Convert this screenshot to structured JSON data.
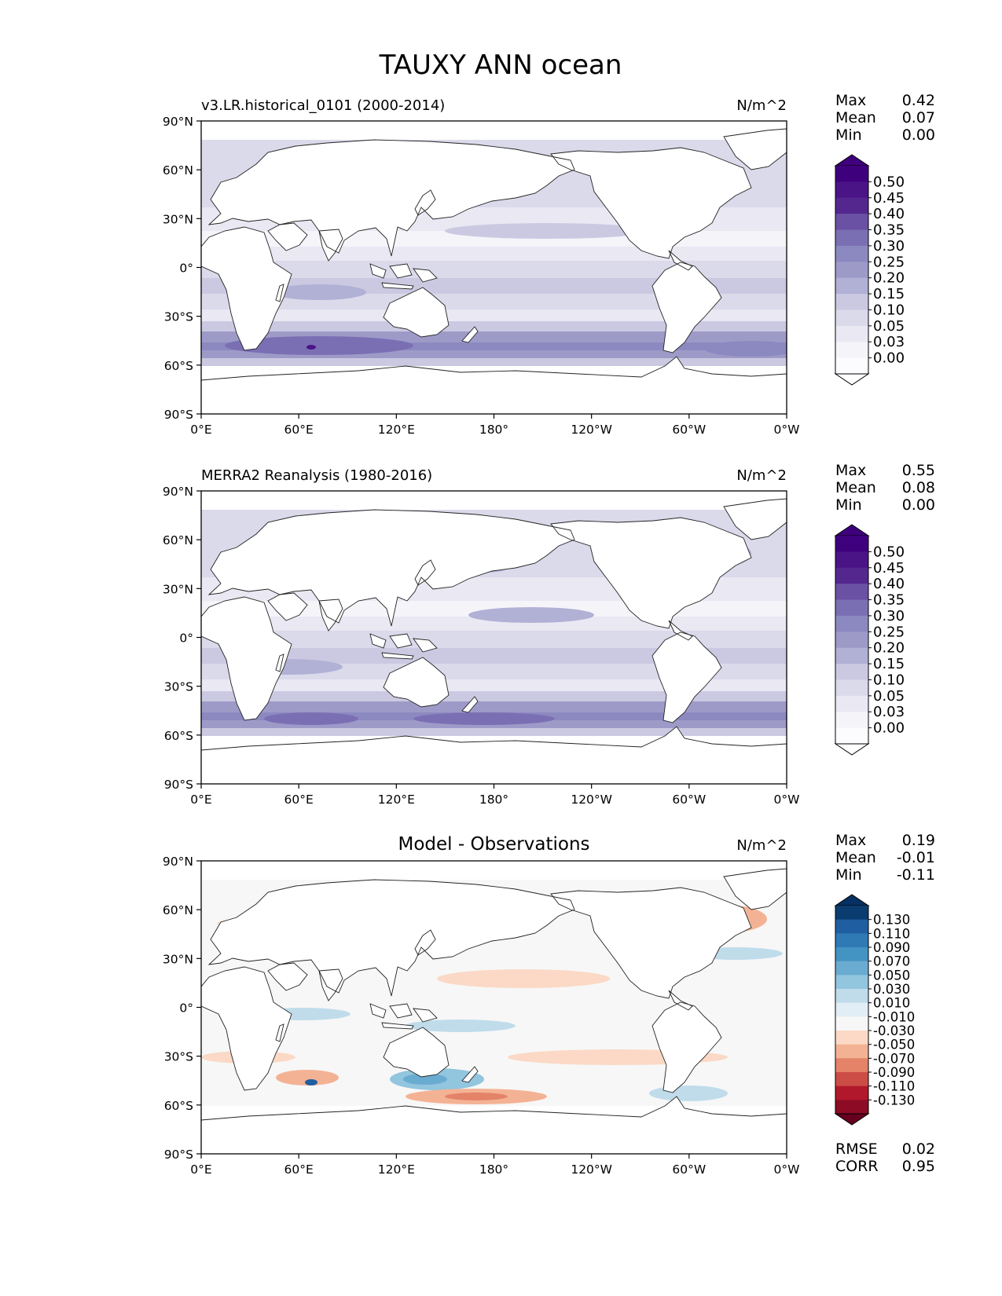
{
  "figure": {
    "title": "TAUXY ANN ocean"
  },
  "axes": {
    "lat_ticks": [
      "90°N",
      "60°N",
      "30°N",
      "0°",
      "30°S",
      "60°S",
      "90°S"
    ],
    "lon_ticks": [
      "0°E",
      "60°E",
      "120°E",
      "180°",
      "120°W",
      "60°W",
      "0°W"
    ]
  },
  "panels": [
    {
      "id": "test",
      "title_left": "v3.LR.historical_0101 (2000-2014)",
      "title_center": "",
      "units": "N/m^2",
      "stats": [
        {
          "label": "Max",
          "value": "0.42"
        },
        {
          "label": "Mean",
          "value": "0.07"
        },
        {
          "label": "Min",
          "value": "0.00"
        }
      ],
      "colorbar": {
        "levels": [
          "0.50",
          "0.45",
          "0.40",
          "0.35",
          "0.30",
          "0.25",
          "0.20",
          "0.15",
          "0.10",
          "0.05",
          "0.03",
          "0.00"
        ],
        "colors": [
          "#3f007d",
          "#4a1486",
          "#54278f",
          "#6a51a3",
          "#7b6fb4",
          "#8c89c0",
          "#9e9ac8",
          "#b1b0d5",
          "#cbc9e2",
          "#dadaeb",
          "#e9e8f3",
          "#f5f4f9",
          "#fcfbfd"
        ],
        "over_color": "#3f007d",
        "under_color": "#ffffff"
      },
      "footer": []
    },
    {
      "id": "reference",
      "title_left": "MERRA2 Reanalysis (1980-2016)",
      "title_center": "",
      "units": "N/m^2",
      "stats": [
        {
          "label": "Max",
          "value": "0.55"
        },
        {
          "label": "Mean",
          "value": "0.08"
        },
        {
          "label": "Min",
          "value": "0.00"
        }
      ],
      "colorbar": {
        "levels": [
          "0.50",
          "0.45",
          "0.40",
          "0.35",
          "0.30",
          "0.25",
          "0.20",
          "0.15",
          "0.10",
          "0.05",
          "0.03",
          "0.00"
        ],
        "colors": [
          "#3f007d",
          "#4a1486",
          "#54278f",
          "#6a51a3",
          "#7b6fb4",
          "#8c89c0",
          "#9e9ac8",
          "#b1b0d5",
          "#cbc9e2",
          "#dadaeb",
          "#e9e8f3",
          "#f5f4f9",
          "#fcfbfd"
        ],
        "over_color": "#3f007d",
        "under_color": "#ffffff"
      },
      "footer": []
    },
    {
      "id": "difference",
      "title_left": "",
      "title_center": "Model - Observations",
      "units": "N/m^2",
      "stats": [
        {
          "label": "Max",
          "value": "0.19"
        },
        {
          "label": "Mean",
          "value": "-0.01"
        },
        {
          "label": "Min",
          "value": "-0.11"
        }
      ],
      "colorbar": {
        "levels": [
          "0.130",
          "0.110",
          "0.090",
          "0.070",
          "0.050",
          "0.030",
          "0.010",
          "-0.010",
          "-0.030",
          "-0.050",
          "-0.070",
          "-0.090",
          "-0.110",
          "-0.130"
        ],
        "colors": [
          "#0b3c70",
          "#1f5ea1",
          "#2f79b5",
          "#4393c3",
          "#6aabd1",
          "#92c5de",
          "#c0dceb",
          "#e2eef5",
          "#f7f7f7",
          "#fbd9c6",
          "#f4b294",
          "#e48368",
          "#cb4d45",
          "#b2182b",
          "#8d0b25"
        ],
        "over_color": "#053061",
        "under_color": "#67001f"
      },
      "footer": [
        {
          "label": "RMSE",
          "value": "0.02"
        },
        {
          "label": "CORR",
          "value": "0.95"
        }
      ]
    }
  ]
}
